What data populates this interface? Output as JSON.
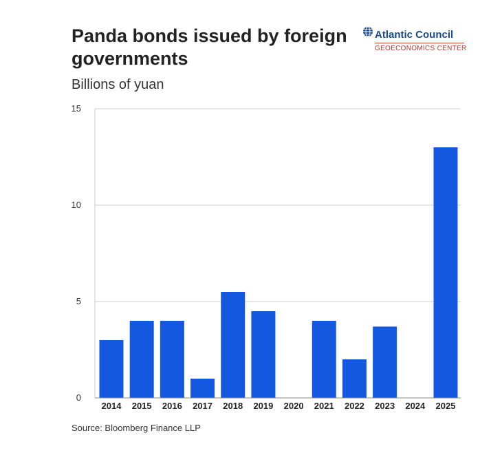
{
  "header": {
    "title": "Panda bonds issued by foreign governments",
    "subtitle": "Billions of yuan"
  },
  "logo": {
    "brand": "Atlantic Council",
    "center": "GEOECONOMICS CENTER",
    "icon": "globe-icon"
  },
  "footer": {
    "source": "Source: Bloomberg Finance LLP"
  },
  "colors": {
    "bar": "#1558e0",
    "grid": "#cccccc",
    "axis": "#888888"
  },
  "chart_data": {
    "type": "bar",
    "title": "Panda bonds issued by foreign governments",
    "subtitle": "Billions of yuan",
    "xlabel": "",
    "ylabel": "",
    "categories": [
      "2014",
      "2015",
      "2016",
      "2017",
      "2018",
      "2019",
      "2020",
      "2021",
      "2022",
      "2023",
      "2024",
      "2025"
    ],
    "values": [
      3,
      4,
      4,
      1,
      5.5,
      4.5,
      0,
      4,
      2,
      3.7,
      0,
      13
    ],
    "ylim": [
      0,
      15
    ],
    "yticks": [
      0,
      5,
      10,
      15
    ],
    "grid": true,
    "legend": "none"
  }
}
